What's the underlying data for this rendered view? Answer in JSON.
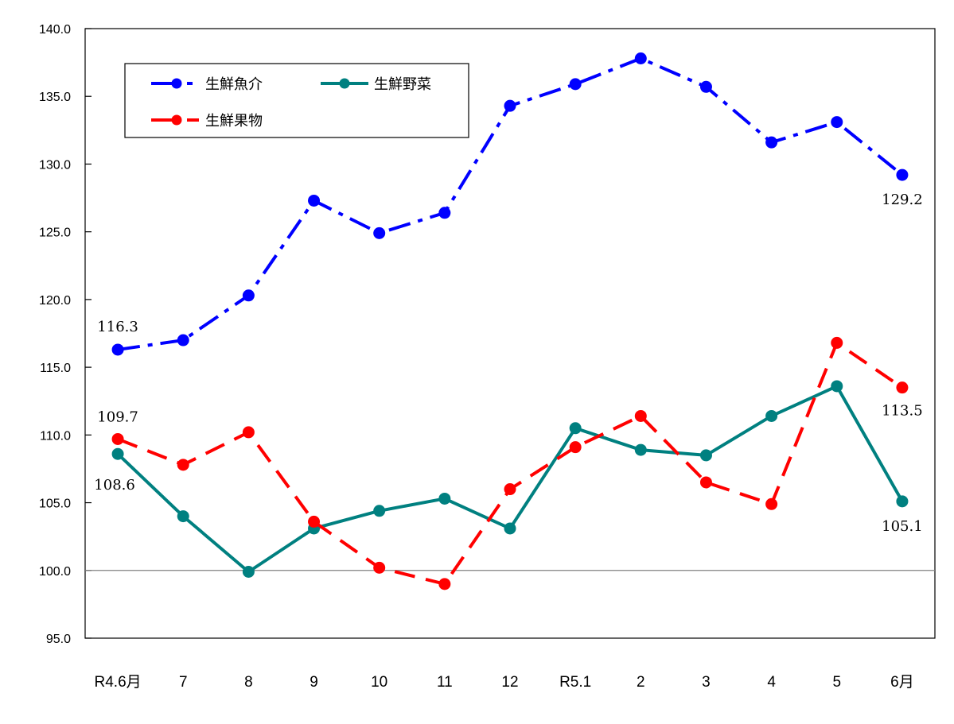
{
  "chart_data": {
    "type": "line",
    "title": "",
    "xlabel": "",
    "ylabel": "",
    "ylim": [
      95.0,
      140.0
    ],
    "yticks": [
      "140.0",
      "135.0",
      "130.0",
      "125.0",
      "120.0",
      "115.0",
      "110.0",
      "105.0",
      "100.0",
      "95.0"
    ],
    "categories": [
      "R4.6月",
      "7",
      "8",
      "9",
      "10",
      "11",
      "12",
      "R5.1",
      "2",
      "3",
      "4",
      "5",
      "6月"
    ],
    "reference_line": 100.0,
    "grid": false,
    "legend_position": "upper-left (inside plot)",
    "series": [
      {
        "name": "生鮮魚介",
        "color": "#0000ff",
        "line_style": "dash-dot",
        "values": [
          116.3,
          117.0,
          120.3,
          127.3,
          124.9,
          126.4,
          134.3,
          135.9,
          137.8,
          135.7,
          131.6,
          133.1,
          129.2
        ]
      },
      {
        "name": "生鮮野菜",
        "color": "#008080",
        "line_style": "solid",
        "values": [
          108.6,
          104.0,
          99.9,
          103.1,
          104.4,
          105.3,
          103.1,
          110.5,
          108.9,
          108.5,
          111.4,
          113.6,
          105.1
        ]
      },
      {
        "name": "生鮮果物",
        "color": "#ff0000",
        "line_style": "dashed",
        "values": [
          109.7,
          107.8,
          110.2,
          103.6,
          100.2,
          99.0,
          106.0,
          109.1,
          111.4,
          106.5,
          104.9,
          116.8,
          113.5
        ]
      }
    ],
    "annotations": [
      {
        "series": "生鮮魚介",
        "index": 0,
        "text": "116.3"
      },
      {
        "series": "生鮮魚介",
        "index": 12,
        "text": "129.2"
      },
      {
        "series": "生鮮果物",
        "index": 0,
        "text": "109.7"
      },
      {
        "series": "生鮮果物",
        "index": 12,
        "text": "113.5"
      },
      {
        "series": "生鮮野菜",
        "index": 0,
        "text": "108.6"
      },
      {
        "series": "生鮮野菜",
        "index": 12,
        "text": "105.1"
      }
    ]
  },
  "legend": {
    "items": [
      {
        "label": "生鮮魚介"
      },
      {
        "label": "生鮮野菜"
      },
      {
        "label": "生鮮果物"
      }
    ]
  }
}
